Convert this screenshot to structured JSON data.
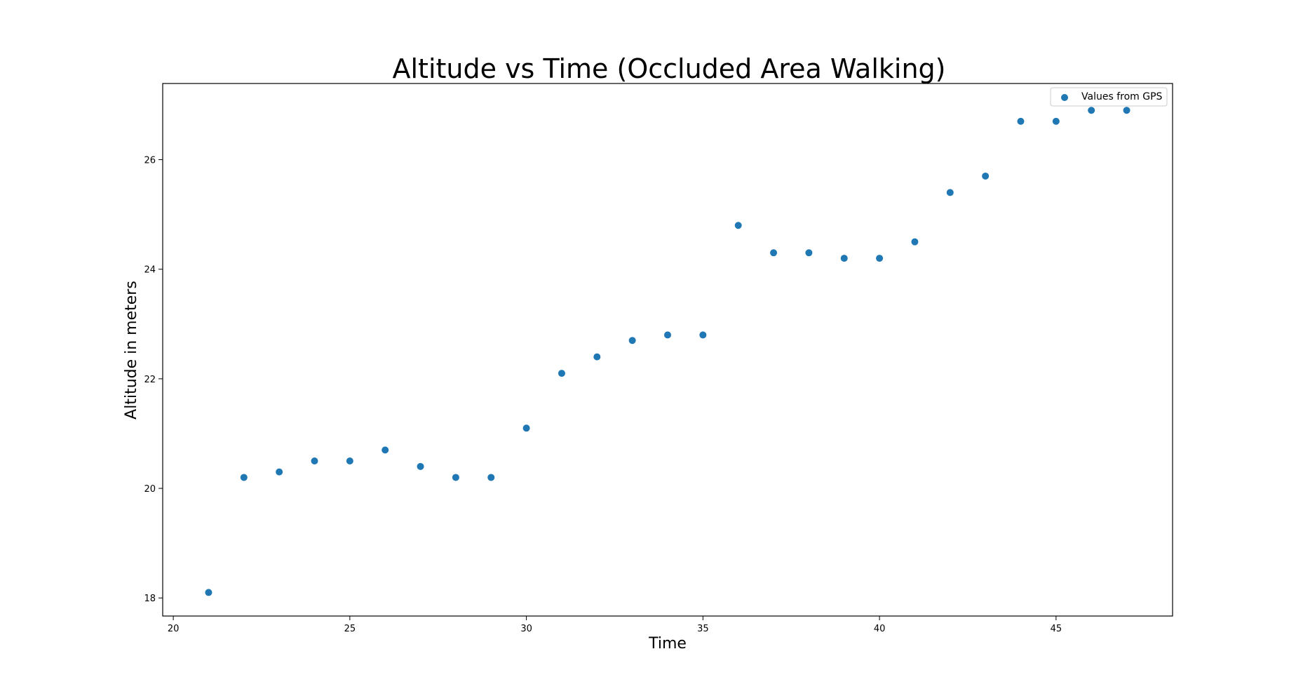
{
  "chart_data": {
    "type": "scatter",
    "title": "Altitude vs Time (Occluded Area Walking)",
    "xlabel": "Time",
    "ylabel": "Altitude in meters",
    "xlim": [
      19.7,
      48.3
    ],
    "ylim": [
      17.67,
      27.39
    ],
    "xticks": [
      "20",
      "25",
      "30",
      "35",
      "40",
      "45"
    ],
    "yticks": [
      "18",
      "20",
      "22",
      "24",
      "26"
    ],
    "grid": false,
    "legend_position": "top-right",
    "series": [
      {
        "name": "Values from GPS",
        "color": "#1f77b4",
        "points": [
          {
            "x": 21,
            "y": 18.1
          },
          {
            "x": 22,
            "y": 20.2
          },
          {
            "x": 23,
            "y": 20.3
          },
          {
            "x": 24,
            "y": 20.5
          },
          {
            "x": 25,
            "y": 20.5
          },
          {
            "x": 26,
            "y": 20.7
          },
          {
            "x": 27,
            "y": 20.4
          },
          {
            "x": 28,
            "y": 20.2
          },
          {
            "x": 29,
            "y": 20.2
          },
          {
            "x": 30,
            "y": 21.1
          },
          {
            "x": 31,
            "y": 22.1
          },
          {
            "x": 32,
            "y": 22.4
          },
          {
            "x": 33,
            "y": 22.7
          },
          {
            "x": 34,
            "y": 22.8
          },
          {
            "x": 35,
            "y": 22.8
          },
          {
            "x": 36,
            "y": 24.8
          },
          {
            "x": 37,
            "y": 24.3
          },
          {
            "x": 38,
            "y": 24.3
          },
          {
            "x": 39,
            "y": 24.2
          },
          {
            "x": 40,
            "y": 24.2
          },
          {
            "x": 41,
            "y": 24.5
          },
          {
            "x": 42,
            "y": 25.4
          },
          {
            "x": 43,
            "y": 25.7
          },
          {
            "x": 44,
            "y": 26.7
          },
          {
            "x": 45,
            "y": 26.7
          },
          {
            "x": 46,
            "y": 26.9
          },
          {
            "x": 47,
            "y": 26.9
          }
        ]
      }
    ]
  }
}
